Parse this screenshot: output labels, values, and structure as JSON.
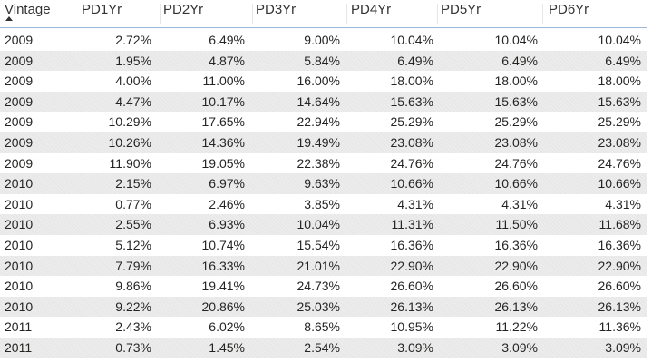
{
  "table": {
    "header": [
      "Vintage",
      "PD1Yr",
      "PD2Yr",
      "PD3Yr",
      "PD4Yr",
      "PD5Yr",
      "PD6Yr"
    ],
    "rows": [
      [
        "2009",
        "2.72%",
        "6.49%",
        "9.00%",
        "10.04%",
        "10.04%",
        "10.04%"
      ],
      [
        "2009",
        "1.95%",
        "4.87%",
        "5.84%",
        "6.49%",
        "6.49%",
        "6.49%"
      ],
      [
        "2009",
        "4.00%",
        "11.00%",
        "16.00%",
        "18.00%",
        "18.00%",
        "18.00%"
      ],
      [
        "2009",
        "4.47%",
        "10.17%",
        "14.64%",
        "15.63%",
        "15.63%",
        "15.63%"
      ],
      [
        "2009",
        "10.29%",
        "17.65%",
        "22.94%",
        "25.29%",
        "25.29%",
        "25.29%"
      ],
      [
        "2009",
        "10.26%",
        "14.36%",
        "19.49%",
        "23.08%",
        "23.08%",
        "23.08%"
      ],
      [
        "2009",
        "11.90%",
        "19.05%",
        "22.38%",
        "24.76%",
        "24.76%",
        "24.76%"
      ],
      [
        "2010",
        "2.15%",
        "6.97%",
        "9.63%",
        "10.66%",
        "10.66%",
        "10.66%"
      ],
      [
        "2010",
        "0.77%",
        "2.46%",
        "3.85%",
        "4.31%",
        "4.31%",
        "4.31%"
      ],
      [
        "2010",
        "2.55%",
        "6.93%",
        "10.04%",
        "11.31%",
        "11.50%",
        "11.68%"
      ],
      [
        "2010",
        "5.12%",
        "10.74%",
        "15.54%",
        "16.36%",
        "16.36%",
        "16.36%"
      ],
      [
        "2010",
        "7.79%",
        "16.33%",
        "21.01%",
        "22.90%",
        "22.90%",
        "22.90%"
      ],
      [
        "2010",
        "9.86%",
        "19.41%",
        "24.73%",
        "26.60%",
        "26.60%",
        "26.60%"
      ],
      [
        "2010",
        "9.22%",
        "20.86%",
        "25.03%",
        "26.13%",
        "26.13%",
        "26.13%"
      ],
      [
        "2011",
        "2.43%",
        "6.02%",
        "8.65%",
        "10.95%",
        "11.22%",
        "11.36%"
      ],
      [
        "2011",
        "0.73%",
        "1.45%",
        "2.54%",
        "3.09%",
        "3.09%",
        "3.09%"
      ]
    ]
  }
}
